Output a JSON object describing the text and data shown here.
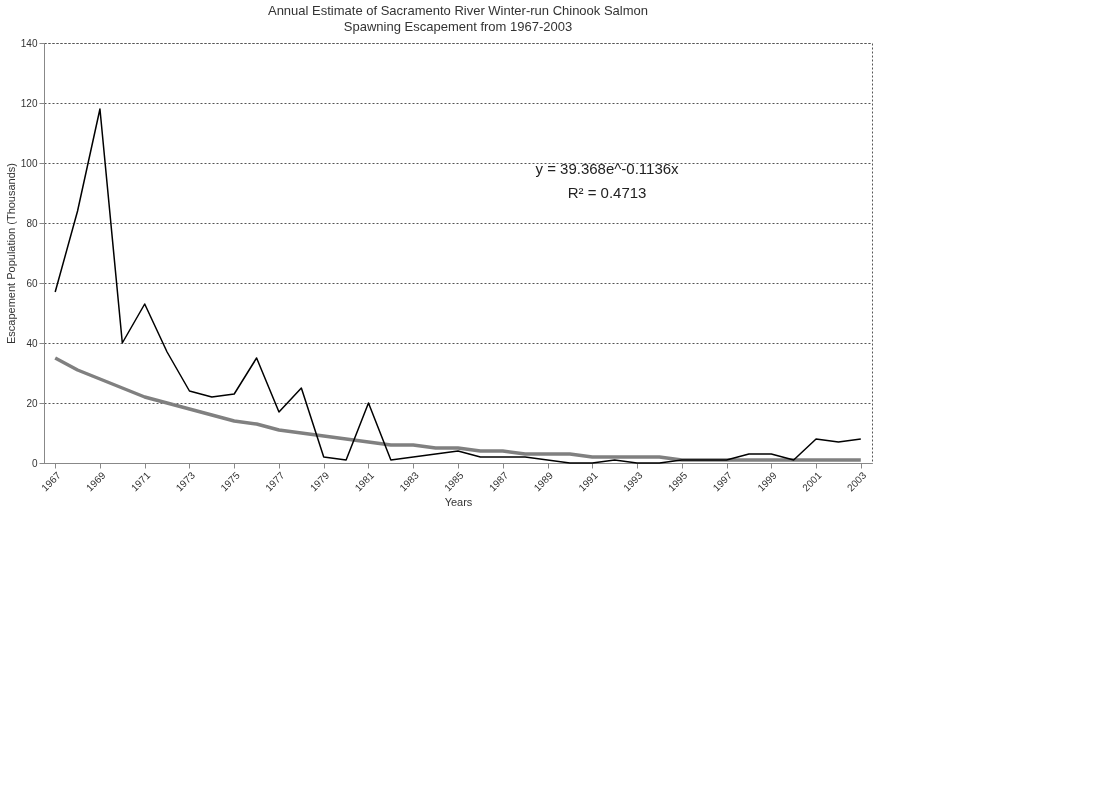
{
  "chart_data": {
    "type": "line",
    "title": "Annual Estimate of Sacramento River Winter-run Chinook Salmon",
    "subtitle": "Spawning Escapement from 1967-2003",
    "xlabel": "Years",
    "ylabel": "Escapement Population (Thousands)",
    "categories": [
      "1967",
      null,
      "1969",
      null,
      "1971",
      null,
      "1973",
      null,
      "1975",
      null,
      "1977",
      null,
      "1979",
      null,
      "1981",
      null,
      "1983",
      null,
      "1985",
      null,
      "1987",
      null,
      "1989",
      null,
      "1991",
      null,
      "1993",
      null,
      "1995",
      null,
      "1997",
      null,
      "1999",
      null,
      "2001",
      null,
      "2003"
    ],
    "series": [
      {
        "color": "#000000",
        "values": [
          57,
          84,
          118,
          40,
          53,
          37,
          24,
          22,
          23,
          35,
          17,
          25,
          2,
          1,
          20,
          1,
          2,
          3,
          4,
          2,
          2,
          2,
          1,
          0,
          0,
          1,
          0,
          0,
          1,
          1,
          1,
          3,
          3,
          1,
          8,
          7,
          8
        ]
      },
      {
        "type": "line",
        "color": "#808080",
        "values": [
          35,
          31,
          28,
          25,
          22,
          20,
          18,
          16,
          14,
          13,
          11,
          10,
          9,
          8,
          7,
          6,
          6,
          5,
          5,
          4,
          4,
          3,
          3,
          3,
          2,
          2,
          2,
          2,
          1,
          1,
          1,
          1,
          1,
          1,
          1,
          1,
          1
        ]
      }
    ],
    "ylim": [
      0,
      140
    ],
    "yticks": [
      0,
      20,
      40,
      60,
      80,
      100,
      120,
      140
    ],
    "grid": "y",
    "marker": "none",
    "line_style": "solid",
    "annotations": [
      "y = 39.368e^-0.1136x",
      "R² = 0.4713"
    ]
  }
}
